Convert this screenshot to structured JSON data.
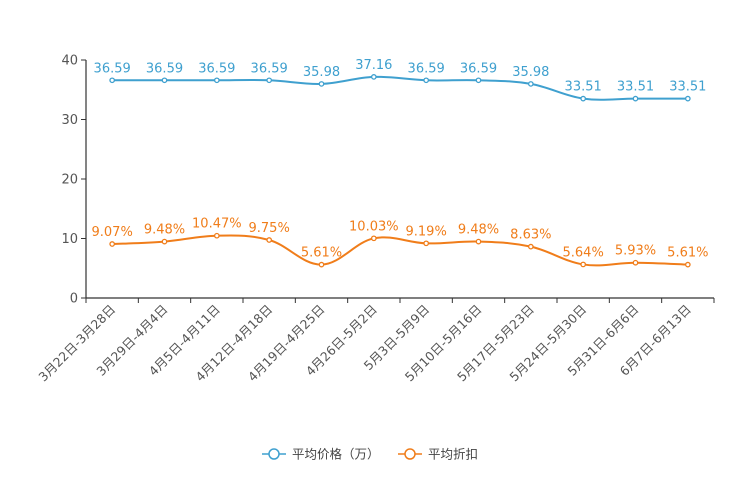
{
  "chart_data": {
    "type": "line",
    "title": "",
    "xlabel": "",
    "ylabel": "",
    "ylim": [
      0,
      40
    ],
    "yticks": [
      0,
      10,
      20,
      30,
      40
    ],
    "grid": false,
    "legend_position": "bottom-center",
    "categories": [
      "3月22日-3月28日",
      "3月29日-4月4日",
      "4月5日-4月11日",
      "4月12日-4月18日",
      "4月19日-4月25日",
      "4月26日-5月2日",
      "5月3日-5月9日",
      "5月10日-5月16日",
      "5月17日-5月23日",
      "5月24日-5月30日",
      "5月31日-6月6日",
      "6月7日-6月13日"
    ],
    "series": [
      {
        "name": "平均价格（万）",
        "color": "#3fa0cf",
        "values": [
          36.59,
          36.59,
          36.59,
          36.59,
          35.98,
          37.16,
          36.59,
          36.59,
          35.98,
          33.51,
          33.51,
          33.51
        ],
        "labels": [
          "36.59",
          "36.59",
          "36.59",
          "36.59",
          "35.98",
          "37.16",
          "36.59",
          "36.59",
          "35.98",
          "33.51",
          "33.51",
          "33.51"
        ]
      },
      {
        "name": "平均折扣",
        "color": "#f07d1a",
        "values": [
          9.07,
          9.48,
          10.47,
          9.75,
          5.61,
          10.03,
          9.19,
          9.48,
          8.63,
          5.64,
          5.93,
          5.61
        ],
        "labels": [
          "9.07%",
          "9.48%",
          "10.47%",
          "9.75%",
          "5.61%",
          "10.03%",
          "9.19%",
          "9.48%",
          "8.63%",
          "5.64%",
          "5.93%",
          "5.61%"
        ]
      }
    ]
  }
}
